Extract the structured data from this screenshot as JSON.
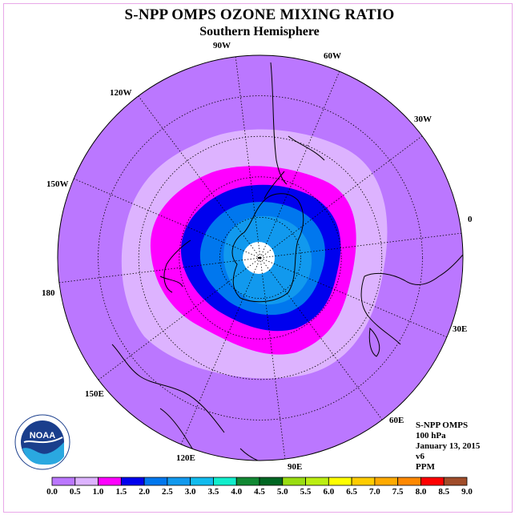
{
  "title": "S-NPP OMPS OZONE MIXING RATIO",
  "subtitle": "Southern Hemisphere",
  "longitude_labels": [
    "90W",
    "60W",
    "30W",
    "0",
    "30E",
    "60E",
    "90E",
    "120E",
    "150E",
    "180",
    "150W",
    "120W"
  ],
  "info": {
    "instrument": "S-NPP OMPS",
    "level": "100 hPa",
    "date": "January 13, 2015",
    "version": "v6",
    "units": "PPM"
  },
  "logo_text": "NOAA",
  "colorbar": {
    "ticks": [
      "0.0",
      "0.5",
      "1.0",
      "1.5",
      "2.0",
      "2.5",
      "3.0",
      "3.5",
      "4.0",
      "4.5",
      "5.0",
      "5.5",
      "6.0",
      "6.5",
      "7.0",
      "7.5",
      "8.0",
      "8.5",
      "9.0"
    ],
    "colors": [
      "#bb77ff",
      "#ddb3ff",
      "#ff00ff",
      "#0000ee",
      "#0077ee",
      "#1199ee",
      "#11bbee",
      "#11eecc",
      "#118833",
      "#006622",
      "#99dd11",
      "#bbee11",
      "#ffff00",
      "#ffcc00",
      "#ffaa00",
      "#ff8800",
      "#ff0000",
      "#a04d2a"
    ]
  },
  "map_colors": {
    "background": "#bb77ff",
    "level_0_5": "#ddb3ff",
    "level_1_0": "#ff00ff",
    "level_1_5": "#0000ee",
    "level_2_0": "#0077ee",
    "level_2_5": "#1199ee",
    "pole": "#ffffff"
  }
}
